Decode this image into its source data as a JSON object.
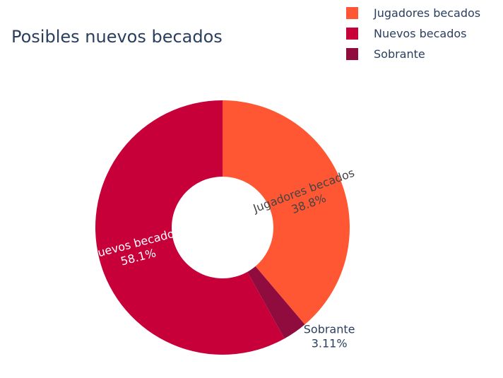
{
  "chart_data": {
    "type": "pie",
    "title": "Posibles nuevos becados",
    "hole": 0.4,
    "legend_position": "top-right",
    "slices": [
      {
        "label": "Jugadores becados",
        "value": 38.8,
        "percent_label": "38.8%",
        "color": "#ff5733",
        "text_color": "#444444",
        "text_position": "inside"
      },
      {
        "label": "Sobrante",
        "value": 3.11,
        "percent_label": "3.11%",
        "color": "#900c3f",
        "text_color": "#2a3f5f",
        "text_position": "outside"
      },
      {
        "label": "Nuevos becados",
        "value": 58.1,
        "percent_label": "58.1%",
        "color": "#c70039",
        "text_color": "#ffffff",
        "text_position": "inside"
      }
    ],
    "legend": [
      {
        "label": "Jugadores becados",
        "color": "#ff5733"
      },
      {
        "label": "Nuevos becados",
        "color": "#c70039"
      },
      {
        "label": "Sobrante",
        "color": "#900c3f"
      }
    ]
  }
}
